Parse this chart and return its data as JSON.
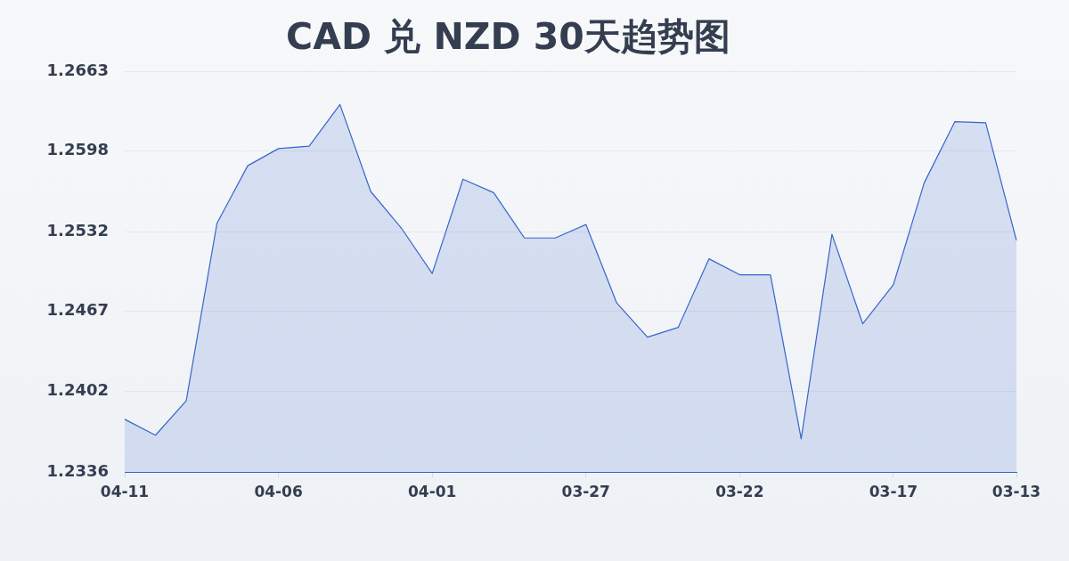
{
  "chart_data": {
    "type": "area",
    "title": "CAD 兑 NZD 30天趋势图",
    "categories": [
      "04-11",
      null,
      null,
      null,
      null,
      "04-06",
      null,
      null,
      null,
      null,
      "04-01",
      null,
      null,
      null,
      null,
      "03-27",
      null,
      null,
      null,
      null,
      "03-22",
      null,
      null,
      null,
      null,
      "03-17",
      null,
      null,
      null,
      "03-13"
    ],
    "series": [
      {
        "color": "#3566cc",
        "values": [
          1.2379,
          1.2366,
          1.2394,
          1.2539,
          1.2586,
          1.26,
          1.2602,
          1.2636,
          1.2565,
          1.2535,
          1.2498,
          1.2575,
          1.2564,
          1.2527,
          1.2527,
          1.2538,
          1.2474,
          1.2446,
          1.2454,
          1.251,
          1.2497,
          1.2497,
          1.2363,
          1.253,
          1.2457,
          1.2489,
          1.2572,
          1.2622,
          1.2621,
          1.2525
        ]
      }
    ],
    "ylim": [
      1.2336,
      1.2663
    ],
    "yticks": [
      1.2336,
      1.2402,
      1.2467,
      1.2532,
      1.2598,
      1.2663
    ],
    "grid": "y"
  }
}
